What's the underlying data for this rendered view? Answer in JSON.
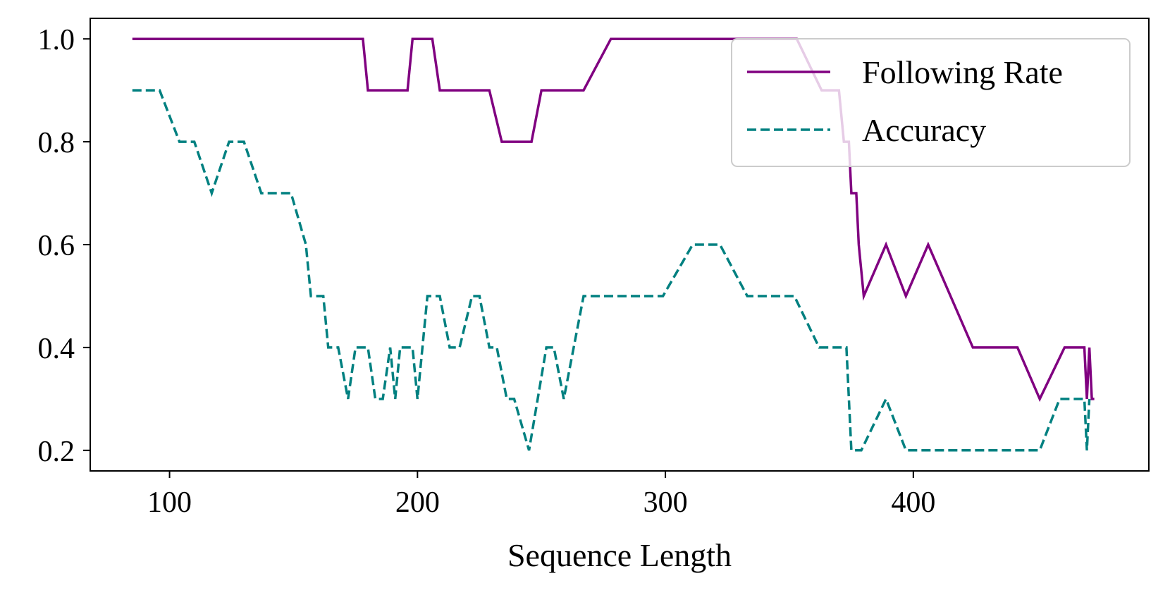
{
  "chart_data": {
    "type": "line",
    "title": "",
    "xlabel": "Sequence Length",
    "ylabel": "",
    "xlim": [
      68,
      495
    ],
    "ylim": [
      0.16,
      1.04
    ],
    "xticks": [
      100,
      200,
      300,
      400
    ],
    "xtick_labels": [
      "100",
      "200",
      "300",
      "400"
    ],
    "yticks": [
      0.2,
      0.4,
      0.6,
      0.8,
      1.0
    ],
    "ytick_labels": [
      "0.2",
      "0.4",
      "0.6",
      "0.8",
      "1.0"
    ],
    "grid": false,
    "legend_position": "top-right",
    "series": [
      {
        "name": "Following Rate",
        "color": "#800080",
        "style": "solid",
        "points": [
          [
            85,
            1.0
          ],
          [
            178,
            1.0
          ],
          [
            180,
            0.9
          ],
          [
            196,
            0.9
          ],
          [
            198,
            1.0
          ],
          [
            206,
            1.0
          ],
          [
            209,
            0.9
          ],
          [
            229,
            0.9
          ],
          [
            234,
            0.8
          ],
          [
            246,
            0.8
          ],
          [
            250,
            0.9
          ],
          [
            267,
            0.9
          ],
          [
            278,
            1.0
          ],
          [
            353,
            1.0
          ],
          [
            363,
            0.9
          ],
          [
            370,
            0.9
          ],
          [
            372,
            0.8
          ],
          [
            374,
            0.8
          ],
          [
            375,
            0.7
          ],
          [
            377,
            0.7
          ],
          [
            378,
            0.6
          ],
          [
            380,
            0.5
          ],
          [
            389,
            0.6
          ],
          [
            397,
            0.5
          ],
          [
            406,
            0.6
          ],
          [
            424,
            0.4
          ],
          [
            442,
            0.4
          ],
          [
            451,
            0.3
          ],
          [
            461,
            0.4
          ],
          [
            469,
            0.4
          ],
          [
            470,
            0.3
          ],
          [
            471,
            0.4
          ],
          [
            472,
            0.3
          ],
          [
            473,
            0.3
          ]
        ]
      },
      {
        "name": "Accuracy",
        "color": "#008080",
        "style": "dashed",
        "points": [
          [
            85,
            0.9
          ],
          [
            96,
            0.9
          ],
          [
            104,
            0.8
          ],
          [
            110,
            0.8
          ],
          [
            117,
            0.7
          ],
          [
            124,
            0.8
          ],
          [
            130,
            0.8
          ],
          [
            137,
            0.7
          ],
          [
            149,
            0.7
          ],
          [
            155,
            0.6
          ],
          [
            157,
            0.5
          ],
          [
            162,
            0.5
          ],
          [
            164,
            0.4
          ],
          [
            168,
            0.4
          ],
          [
            172,
            0.3
          ],
          [
            175,
            0.4
          ],
          [
            180,
            0.4
          ],
          [
            183,
            0.3
          ],
          [
            186,
            0.3
          ],
          [
            189,
            0.4
          ],
          [
            191,
            0.3
          ],
          [
            193,
            0.4
          ],
          [
            198,
            0.4
          ],
          [
            200,
            0.3
          ],
          [
            204,
            0.5
          ],
          [
            209,
            0.5
          ],
          [
            213,
            0.4
          ],
          [
            217,
            0.4
          ],
          [
            222,
            0.5
          ],
          [
            225,
            0.5
          ],
          [
            229,
            0.4
          ],
          [
            232,
            0.4
          ],
          [
            236,
            0.3
          ],
          [
            239,
            0.3
          ],
          [
            245,
            0.2
          ],
          [
            252,
            0.4
          ],
          [
            255,
            0.4
          ],
          [
            259,
            0.3
          ],
          [
            267,
            0.5
          ],
          [
            299,
            0.5
          ],
          [
            311,
            0.6
          ],
          [
            322,
            0.6
          ],
          [
            333,
            0.5
          ],
          [
            352,
            0.5
          ],
          [
            362,
            0.4
          ],
          [
            373,
            0.4
          ],
          [
            375,
            0.2
          ],
          [
            379,
            0.2
          ],
          [
            389,
            0.3
          ],
          [
            397,
            0.2
          ],
          [
            451,
            0.2
          ],
          [
            459,
            0.3
          ],
          [
            469,
            0.3
          ],
          [
            470,
            0.2
          ],
          [
            471,
            0.3
          ]
        ]
      }
    ]
  }
}
